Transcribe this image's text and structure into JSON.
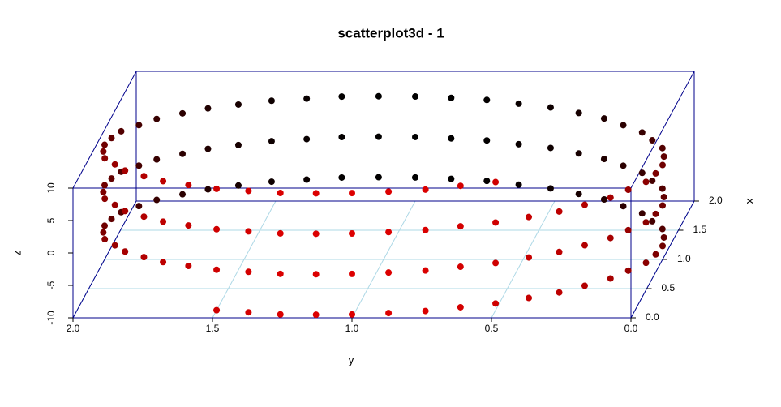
{
  "chart_data": {
    "type": "scatter3d",
    "title": "scatterplot3d - 1",
    "xlabel": "x",
    "ylabel": "y",
    "zlabel": "z",
    "x": [
      0.13,
      0.08,
      0.03,
      0.01,
      0,
      0.01,
      0.03,
      0.08,
      0.13,
      0.21,
      0.29,
      0.39,
      0.5,
      0.62,
      0.74,
      0.87,
      1,
      1.13,
      1.26,
      1.38,
      1.5,
      1.61,
      1.71,
      1.79,
      1.87,
      1.92,
      1.97,
      1.99,
      2,
      1.99,
      1.97,
      1.92,
      1.87,
      1.79,
      1.71,
      1.61,
      1.5,
      1.38,
      1.26,
      1.13,
      1,
      0.87,
      0.74,
      0.62,
      0.5,
      0.39,
      0.29,
      0.21,
      0.13,
      0.08,
      0.03,
      0.01,
      0,
      0.01,
      0.03,
      0.08,
      0.13,
      0.21,
      0.29,
      0.39,
      0.5,
      0.62,
      0.74,
      0.87,
      1,
      1.13,
      1.26,
      1.38,
      1.5,
      1.61,
      1.71,
      1.79,
      1.87,
      1.92,
      1.97,
      1.99,
      2,
      1.99,
      1.97,
      1.92,
      1.87,
      1.79,
      1.71,
      1.61,
      1.5,
      1.38,
      1.26,
      1.13,
      1,
      0.87,
      0.74,
      0.62,
      0.5,
      0.39,
      0.29,
      0.21,
      0.13,
      0.08,
      0.03,
      0.01,
      0,
      0.01,
      0.03,
      0.08,
      0.13,
      0.21,
      0.29,
      0.39,
      0.5,
      0.62,
      0.74,
      0.87,
      1,
      1.13,
      1.26,
      1.38,
      1.5,
      1.61,
      1.71,
      1.79,
      1.87,
      1.92,
      1.97,
      1.99,
      2,
      1.99,
      1.97,
      1.92,
      1.87,
      1.79,
      1.71,
      1.61,
      1.5,
      1.38,
      1.26,
      1.13,
      1,
      0.87,
      0.74,
      0.62,
      0.5,
      0.39,
      0.29,
      0.21,
      0.13,
      0.08,
      0.03,
      0.01,
      0,
      0.01,
      0.03,
      0.08,
      0.13
    ],
    "y": [
      1.5,
      1.38,
      1.26,
      1.13,
      1,
      0.87,
      0.74,
      0.62,
      0.5,
      0.39,
      0.29,
      0.21,
      0.13,
      0.08,
      0.03,
      0.01,
      0,
      0.01,
      0.03,
      0.08,
      0.13,
      0.21,
      0.29,
      0.39,
      0.5,
      0.62,
      0.74,
      0.87,
      1,
      1.13,
      1.26,
      1.38,
      1.5,
      1.61,
      1.71,
      1.79,
      1.87,
      1.92,
      1.97,
      1.99,
      2,
      1.99,
      1.97,
      1.92,
      1.87,
      1.79,
      1.71,
      1.61,
      1.5,
      1.38,
      1.26,
      1.13,
      1,
      0.87,
      0.74,
      0.62,
      0.5,
      0.39,
      0.29,
      0.21,
      0.13,
      0.08,
      0.03,
      0.01,
      0,
      0.01,
      0.03,
      0.08,
      0.13,
      0.21,
      0.29,
      0.39,
      0.5,
      0.62,
      0.74,
      0.87,
      1,
      1.13,
      1.26,
      1.38,
      1.5,
      1.61,
      1.71,
      1.79,
      1.87,
      1.92,
      1.97,
      1.99,
      2,
      1.99,
      1.97,
      1.92,
      1.87,
      1.79,
      1.71,
      1.61,
      1.5,
      1.38,
      1.26,
      1.13,
      1,
      0.87,
      0.74,
      0.62,
      0.5,
      0.39,
      0.29,
      0.21,
      0.13,
      0.08,
      0.03,
      0.01,
      0,
      0.01,
      0.03,
      0.08,
      0.13,
      0.21,
      0.29,
      0.39,
      0.5,
      0.62,
      0.74,
      0.87,
      1,
      1.13,
      1.26,
      1.38,
      1.5,
      1.61,
      1.71,
      1.79,
      1.87,
      1.92,
      1.97,
      1.99,
      2,
      1.99,
      1.97,
      1.92,
      1.87,
      1.79,
      1.71,
      1.61,
      1.5,
      1.38,
      1.26,
      1.13,
      1,
      0.87,
      0.74,
      0.62,
      0.5
    ],
    "z": [
      -10,
      -9.87,
      -9.74,
      -9.61,
      -9.48,
      -9.35,
      -9.22,
      -9.09,
      -8.96,
      -8.83,
      -8.7,
      -8.57,
      -8.44,
      -8.31,
      -8.18,
      -8.05,
      -7.92,
      -7.79,
      -7.66,
      -7.53,
      -7.4,
      -7.27,
      -7.14,
      -7.01,
      -6.88,
      -6.75,
      -6.62,
      -6.49,
      -6.36,
      -6.23,
      -6.1,
      -5.97,
      -5.84,
      -5.71,
      -5.58,
      -5.45,
      -5.32,
      -5.19,
      -5.06,
      -4.93,
      -4.8,
      -4.67,
      -4.54,
      -4.41,
      -4.28,
      -4.15,
      -4.02,
      -3.89,
      -3.76,
      -3.63,
      -3.5,
      -3.37,
      -3.24,
      -3.11,
      -2.98,
      -2.85,
      -2.72,
      -2.59,
      -2.46,
      -2.33,
      -2.2,
      -2.07,
      -1.94,
      -1.81,
      -1.68,
      -1.55,
      -1.42,
      -1.29,
      -1.16,
      -1.03,
      -0.9,
      -0.77,
      -0.64,
      -0.51,
      -0.38,
      -0.25,
      -0.12,
      0.01,
      0.14,
      0.27,
      0.4,
      0.53,
      0.66,
      0.79,
      0.92,
      1.05,
      1.18,
      1.31,
      1.44,
      1.57,
      1.7,
      1.83,
      1.96,
      2.09,
      2.22,
      2.35,
      2.48,
      2.61,
      2.74,
      2.87,
      3,
      3.13,
      3.26,
      3.39,
      3.52,
      3.65,
      3.78,
      3.91,
      4.04,
      4.17,
      4.3,
      4.43,
      4.56,
      4.69,
      4.82,
      4.95,
      5.08,
      5.21,
      5.34,
      5.47,
      5.6,
      5.73,
      5.86,
      5.99,
      6.12,
      6.25,
      6.38,
      6.51,
      6.64,
      6.77,
      6.9,
      7.03,
      7.16,
      7.29,
      7.42,
      7.55,
      7.68,
      7.81,
      7.94,
      8.07,
      8.2,
      8.33,
      8.46,
      8.59,
      8.72,
      8.85,
      8.98,
      9.11,
      9.24,
      9.37,
      9.5,
      9.63,
      9.76
    ],
    "xlim": [
      0,
      2
    ],
    "ylim": [
      0,
      2
    ],
    "zlim": [
      -10,
      10
    ],
    "xticks": [
      {
        "value": 0,
        "label": "0.0"
      },
      {
        "value": 0.5,
        "label": "0.5"
      },
      {
        "value": 1,
        "label": "1.0"
      },
      {
        "value": 1.5,
        "label": "1.5"
      },
      {
        "value": 2,
        "label": "2.0"
      }
    ],
    "yticks": [
      {
        "value": 0,
        "label": "0.0"
      },
      {
        "value": 0.5,
        "label": "0.5"
      },
      {
        "value": 1,
        "label": "1.0"
      },
      {
        "value": 1.5,
        "label": "1.5"
      },
      {
        "value": 2,
        "label": "2.0"
      }
    ],
    "zticks": [
      -10,
      -5,
      0,
      5,
      10
    ],
    "y_reversed": true,
    "grid": true,
    "highlight_3d": true,
    "color_front": "#dd0000",
    "color_back": "#000000",
    "box_color": "#00008b",
    "grid_color": "#add8e6"
  }
}
